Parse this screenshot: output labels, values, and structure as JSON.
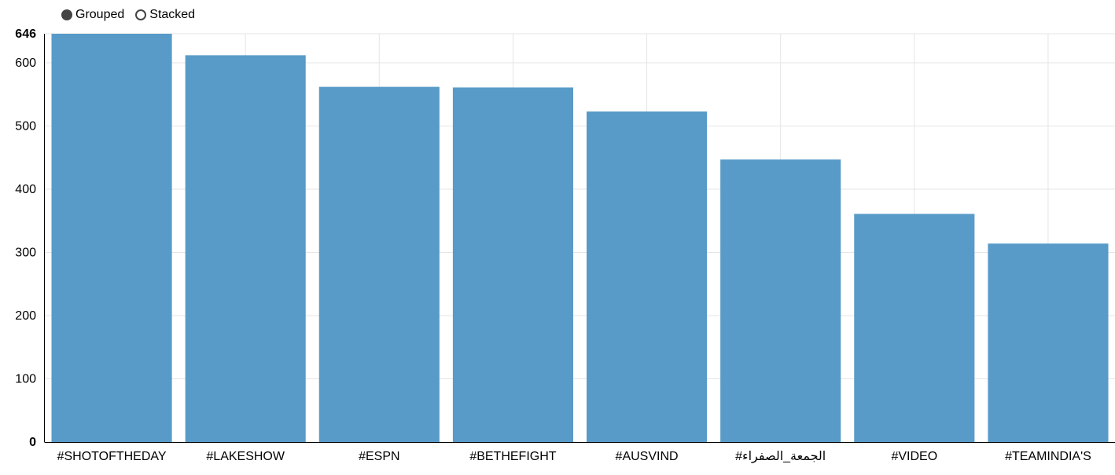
{
  "controls": {
    "grouped_label": "Grouped",
    "stacked_label": "Stacked",
    "selected": "grouped"
  },
  "colors": {
    "bar": "#5599c7",
    "grid": "#e5e5e5",
    "axis": "#000000"
  },
  "chart_data": {
    "type": "bar",
    "categories": [
      "#SHOTOFTHEDAY",
      "#LAKESHOW",
      "#ESPN",
      "#BETHEFIGHT",
      "#AUSVIND",
      "#الجمعة_الصفراء",
      "#VIDEO",
      "#TEAMINDIA'S"
    ],
    "series": [
      {
        "values": [
          646,
          612,
          562,
          561,
          523,
          447,
          361,
          314
        ]
      }
    ],
    "y_ticks": [
      0,
      100,
      200,
      300,
      400,
      500,
      600,
      646
    ],
    "y_bold_ticks": [
      0,
      646
    ],
    "ylim": [
      0,
      646
    ],
    "grid": true,
    "title": "",
    "xlabel": "",
    "ylabel": ""
  }
}
